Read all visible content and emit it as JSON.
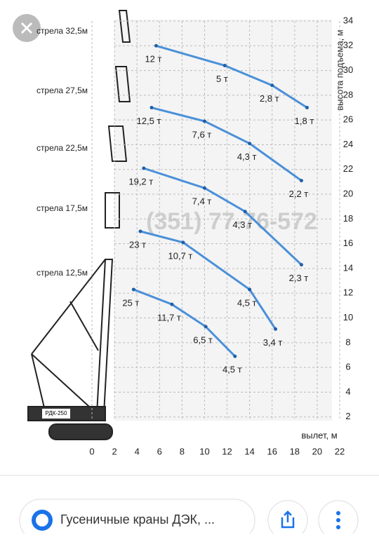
{
  "chart_data": {
    "type": "line",
    "xlabel": "вылет, м",
    "ylabel": "высота подъема, м",
    "xlim": [
      0,
      22
    ],
    "xticks": [
      0,
      2,
      4,
      6,
      8,
      10,
      12,
      14,
      16,
      18,
      20,
      22
    ],
    "ylim": [
      0,
      34
    ],
    "yticks": [
      2,
      4,
      6,
      8,
      10,
      12,
      14,
      16,
      18,
      20,
      22,
      24,
      26,
      28,
      30,
      32,
      34
    ],
    "grid": true,
    "watermark": "(351) 77-76-572",
    "crane_label": "РДК-250",
    "series": [
      {
        "name": "стрела 32,5м",
        "color": "#4a90d9",
        "x": [
          5.7,
          11.8,
          16,
          19.1
        ],
        "values": [
          32,
          30.4,
          28.8,
          27
        ],
        "load_labels": [
          "12 т",
          "5 т",
          "2,8 т",
          "1,8 т"
        ]
      },
      {
        "name": "стрела 27,5м",
        "color": "#4a90d9",
        "x": [
          5.3,
          10,
          14,
          18.6
        ],
        "values": [
          27,
          25.9,
          24.1,
          21.1
        ],
        "load_labels": [
          "12,5 т",
          "7,6 т",
          "4,3 т",
          "2,2 т"
        ]
      },
      {
        "name": "стрела 22,5м",
        "color": "#4a90d9",
        "x": [
          4.6,
          10,
          13.6,
          18.6
        ],
        "values": [
          22.1,
          20.5,
          18.6,
          14.3
        ],
        "load_labels": [
          "19,2 т",
          "7,4 т",
          "4,3 т",
          "2,3 т"
        ]
      },
      {
        "name": "стрела 17,5м",
        "color": "#4a90d9",
        "x": [
          4.3,
          8.1,
          14,
          16.3
        ],
        "values": [
          17,
          16.1,
          12.3,
          9.1
        ],
        "load_labels": [
          "23 т",
          "10,7 т",
          "4,5 т",
          "3,4 т"
        ]
      },
      {
        "name": "стрела 12,5м",
        "color": "#4a90d9",
        "x": [
          3.7,
          7.1,
          10.1,
          12.7
        ],
        "values": [
          12.3,
          11.1,
          9.3,
          6.9
        ],
        "load_labels": [
          "25 т",
          "11,7 т",
          "6,5 т",
          "4,5 т"
        ]
      }
    ]
  },
  "footer": {
    "caption": "Гусеничные краны ДЭК, ..."
  }
}
